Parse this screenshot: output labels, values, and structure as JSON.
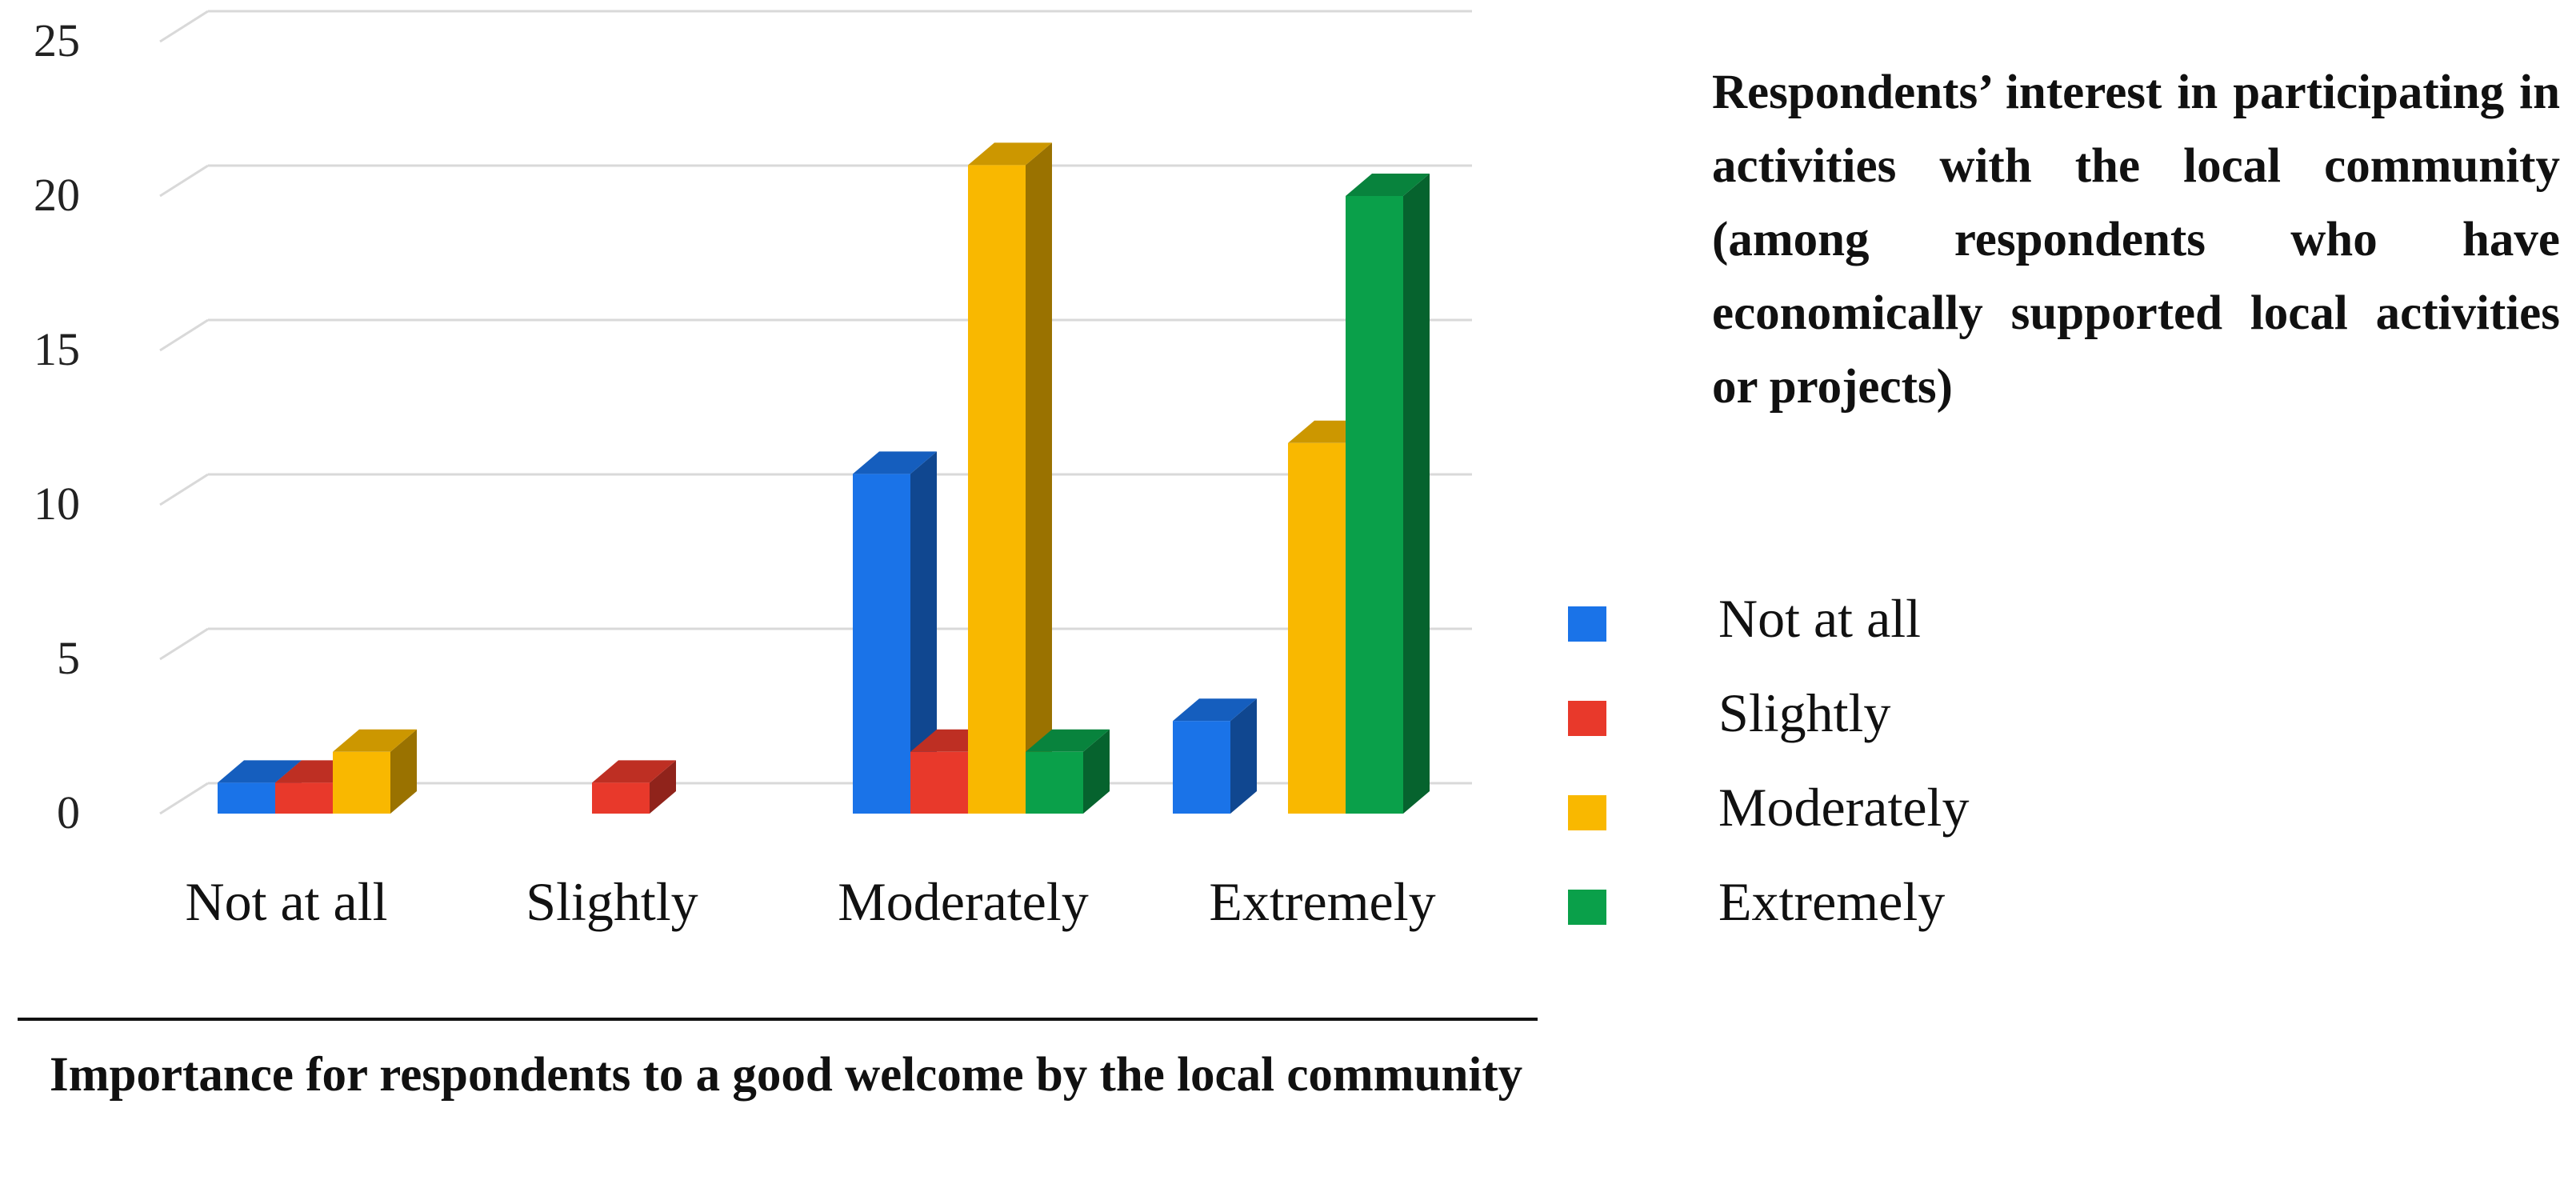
{
  "chart_data": {
    "type": "bar",
    "title": "",
    "xlabel": "Importance for respondents to a good welcome by the local community",
    "legend_title": "Respondents’ interest in participating in activities with the local community (among respondents who have economically supported local activities or projects)",
    "categories": [
      "Not at all",
      "Slightly",
      "Moderately",
      "Extremely"
    ],
    "series": [
      {
        "name": "Not at all",
        "color": "#1a73e8",
        "values": [
          1,
          0,
          11,
          3
        ]
      },
      {
        "name": "Slightly",
        "color": "#e8392b",
        "values": [
          1,
          1,
          2,
          0
        ]
      },
      {
        "name": "Moderately",
        "color": "#f9b800",
        "values": [
          2,
          0,
          21,
          12
        ]
      },
      {
        "name": "Extremely",
        "color": "#0aa04a",
        "values": [
          0,
          0,
          2,
          20
        ]
      }
    ],
    "ylim": [
      0,
      25
    ],
    "yticks": [
      "0",
      "5",
      "10",
      "15",
      "20",
      "25"
    ],
    "grid": true,
    "legend_position": "right"
  }
}
